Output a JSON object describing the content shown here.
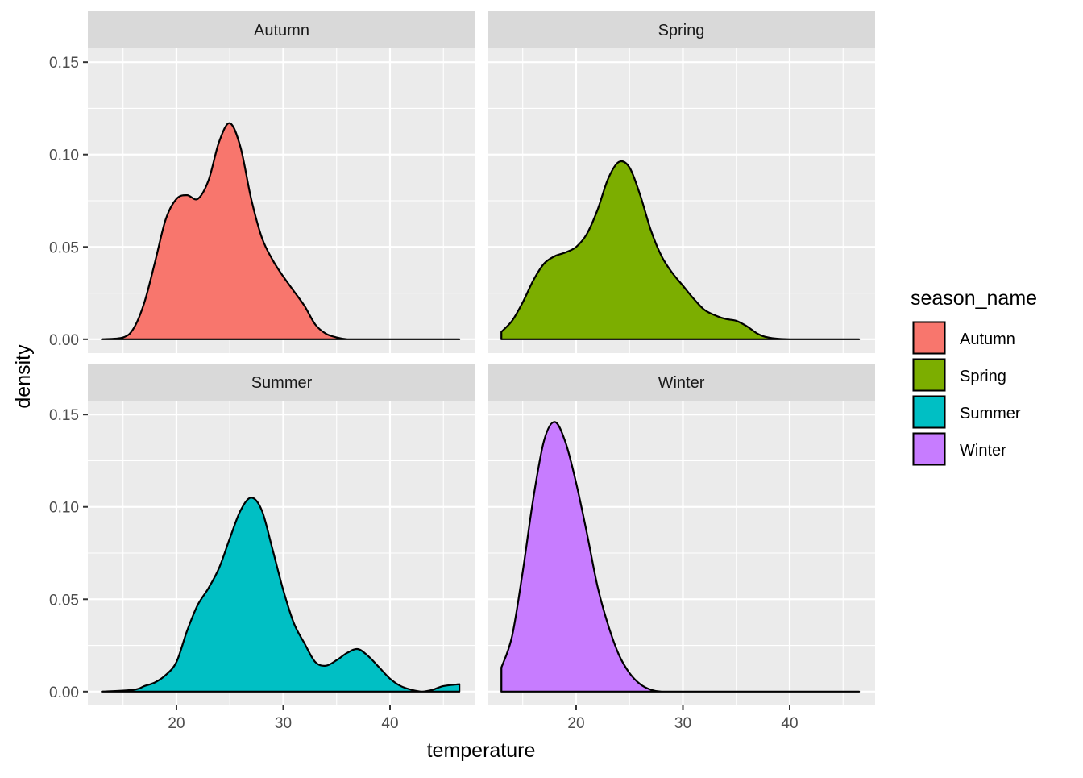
{
  "chart_data": {
    "type": "area",
    "subtype": "faceted-density",
    "xlabel": "temperature",
    "ylabel": "density",
    "xlim": [
      11.7,
      48.0
    ],
    "ylim": [
      -0.0075,
      0.1575
    ],
    "x_ticks": [
      20,
      30,
      40
    ],
    "y_ticks": [
      0.0,
      0.05,
      0.1,
      0.15
    ],
    "y_tick_labels": [
      "0.00",
      "0.05",
      "0.10",
      "0.15"
    ],
    "grid": true,
    "legend": {
      "title": "season_name",
      "position": "right",
      "entries": [
        "Autumn",
        "Spring",
        "Summer",
        "Winter"
      ]
    },
    "facets": [
      {
        "name": "Autumn",
        "color": "#F8766D",
        "x": [
          13,
          15,
          16,
          17,
          18,
          19,
          20,
          21,
          22,
          23,
          24,
          25,
          26,
          27,
          28,
          29,
          30,
          31,
          32,
          33,
          34,
          35,
          36,
          37,
          40,
          46.5
        ],
        "y": [
          0.0,
          0.001,
          0.006,
          0.02,
          0.042,
          0.065,
          0.076,
          0.078,
          0.076,
          0.086,
          0.107,
          0.117,
          0.104,
          0.076,
          0.055,
          0.043,
          0.034,
          0.026,
          0.018,
          0.008,
          0.003,
          0.001,
          0.0,
          0.0,
          0.0,
          0.0
        ]
      },
      {
        "name": "Spring",
        "color": "#7CAE00",
        "x": [
          13.0,
          14,
          15,
          16,
          17,
          18,
          19,
          20,
          21,
          22,
          23,
          24,
          25,
          26,
          27,
          28,
          29,
          30,
          31,
          32,
          33,
          34,
          35,
          36,
          37,
          38,
          40,
          46.5
        ],
        "y": [
          0.004,
          0.01,
          0.02,
          0.032,
          0.041,
          0.045,
          0.047,
          0.05,
          0.057,
          0.07,
          0.087,
          0.096,
          0.093,
          0.078,
          0.059,
          0.045,
          0.036,
          0.029,
          0.022,
          0.016,
          0.013,
          0.011,
          0.01,
          0.007,
          0.003,
          0.001,
          0.0,
          0.0
        ]
      },
      {
        "name": "Summer",
        "color": "#00BFC4",
        "x": [
          13,
          16,
          17,
          18,
          19,
          20,
          21,
          22,
          23,
          24,
          25,
          26,
          27,
          28,
          29,
          30,
          31,
          32,
          33,
          34,
          35,
          36,
          37,
          38,
          39,
          40,
          41,
          42,
          43,
          44,
          45,
          46.5
        ],
        "y": [
          0.0,
          0.001,
          0.003,
          0.005,
          0.009,
          0.016,
          0.033,
          0.047,
          0.056,
          0.067,
          0.083,
          0.098,
          0.105,
          0.098,
          0.077,
          0.055,
          0.037,
          0.026,
          0.016,
          0.014,
          0.017,
          0.021,
          0.023,
          0.019,
          0.013,
          0.007,
          0.003,
          0.001,
          0.0,
          0.001,
          0.003,
          0.004
        ]
      },
      {
        "name": "Winter",
        "color": "#C77CFF",
        "x": [
          13.0,
          14,
          15,
          16,
          17,
          18,
          19,
          20,
          21,
          22,
          23,
          24,
          25,
          26,
          27,
          28,
          30,
          46.5
        ],
        "y": [
          0.013,
          0.03,
          0.065,
          0.105,
          0.136,
          0.146,
          0.135,
          0.113,
          0.086,
          0.057,
          0.036,
          0.02,
          0.01,
          0.004,
          0.001,
          0.0,
          0.0,
          0.0
        ]
      }
    ]
  }
}
